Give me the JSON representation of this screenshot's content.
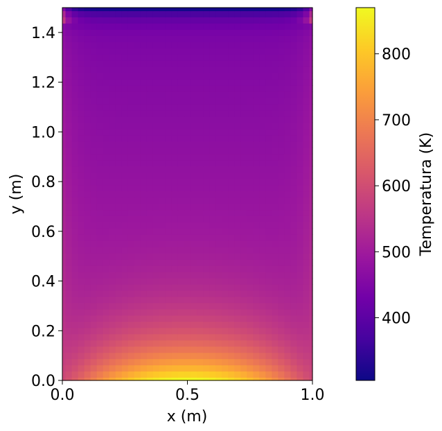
{
  "chart_data": {
    "type": "heatmap",
    "xlabel": "x (m)",
    "ylabel": "y (m)",
    "xlim": [
      0.0,
      1.0
    ],
    "ylim": [
      0.0,
      1.5
    ],
    "grid_resolution": {
      "nx": 41,
      "ny": 61
    },
    "x_ticks": [
      "0.0",
      "0.5",
      "1.0"
    ],
    "y_ticks": [
      "0.0",
      "0.2",
      "0.4",
      "0.6",
      "0.8",
      "1.0",
      "1.2",
      "1.4"
    ],
    "colormap": "plasma",
    "colorbar": {
      "label": "Temperatura (K)",
      "vmin": 305,
      "vmax": 870,
      "ticks": [
        "400",
        "500",
        "600",
        "700",
        "800"
      ]
    },
    "field_summary": {
      "bottom_center_K": 870,
      "bottom_corners_K": 520,
      "side_walls_mid_K": 525,
      "interior_mid_K": 500,
      "interior_upper_K": 440,
      "top_edge_K": 310,
      "top_corners_K": 500
    },
    "colors": {
      "plasma_stops": [
        "#0d0887",
        "#46039f",
        "#7201a8",
        "#9c179e",
        "#bd3786",
        "#d8576b",
        "#ed7953",
        "#fb9f3a",
        "#fdca26",
        "#f0f921"
      ]
    }
  }
}
